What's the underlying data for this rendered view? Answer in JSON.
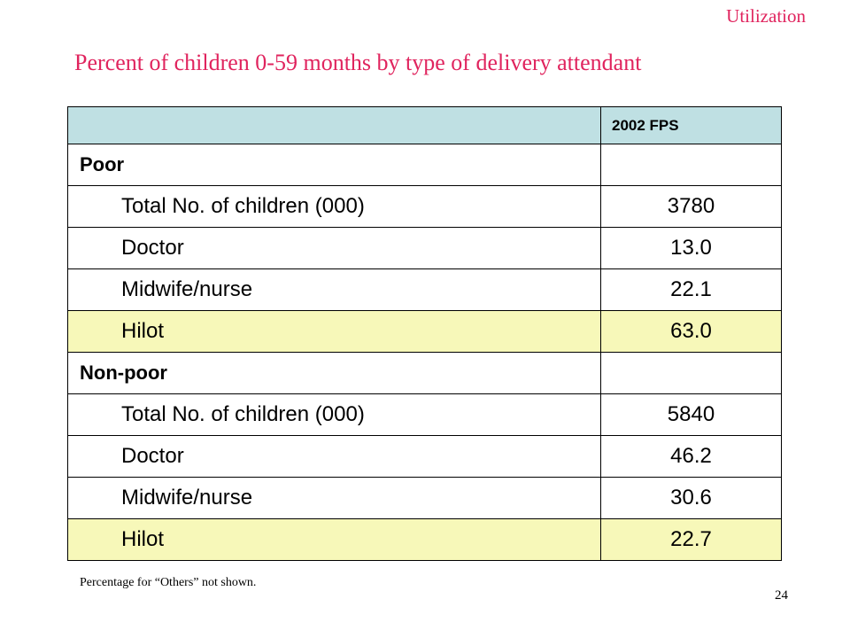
{
  "section_tag": "Utilization",
  "title": "Percent of children 0-59 months by type of delivery attendant",
  "table": {
    "header": {
      "label": "",
      "value": "2002 FPS"
    },
    "rows": [
      {
        "label": "Poor",
        "value": "",
        "type": "group"
      },
      {
        "label": "Total No. of children (000)",
        "value": "3780",
        "type": "item"
      },
      {
        "label": "Doctor",
        "value": "13.0",
        "type": "item"
      },
      {
        "label": "Midwife/nurse",
        "value": "22.1",
        "type": "item"
      },
      {
        "label": "Hilot",
        "value": "63.0",
        "type": "item",
        "highlight": true
      },
      {
        "label": "Non-poor",
        "value": "",
        "type": "group"
      },
      {
        "label": "Total No. of children (000)",
        "value": "5840",
        "type": "item"
      },
      {
        "label": "Doctor",
        "value": "46.2",
        "type": "item"
      },
      {
        "label": "Midwife/nurse",
        "value": "30.6",
        "type": "item"
      },
      {
        "label": "Hilot",
        "value": "22.7",
        "type": "item",
        "highlight": true
      }
    ]
  },
  "footnote": "Percentage for “Others” not shown.",
  "page_number": "24",
  "colors": {
    "title": "#e0245e",
    "header_bg": "#bfe0e3",
    "highlight_bg": "#f7f8b9"
  }
}
